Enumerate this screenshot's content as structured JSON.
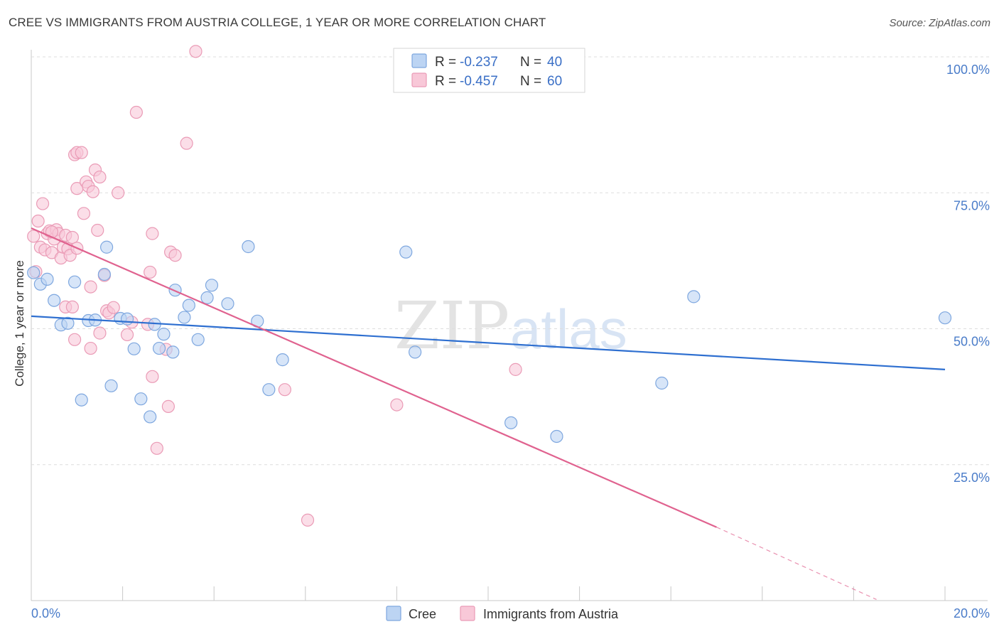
{
  "header": {
    "title": "CREE VS IMMIGRANTS FROM AUSTRIA COLLEGE, 1 YEAR OR MORE CORRELATION CHART",
    "source": "Source: ZipAtlas.com"
  },
  "watermark": {
    "zip": "ZIP",
    "atlas": "atlas"
  },
  "colors": {
    "cree_fill": "#bcd4f3",
    "cree_stroke": "#7ea7df",
    "cree_line": "#2e6fd0",
    "austria_fill": "#f8c8d8",
    "austria_stroke": "#ea9bb6",
    "austria_line": "#e0628f",
    "tick_text": "#4a7cc9",
    "grid": "#dedede"
  },
  "legend": {
    "rows": [
      {
        "r_label": "R = ",
        "r_value": "-0.237",
        "n_label": "N = ",
        "n_value": "40"
      },
      {
        "r_label": "R = ",
        "r_value": "-0.457",
        "n_label": "N = ",
        "n_value": "60"
      }
    ]
  },
  "chart_data": {
    "type": "scatter",
    "title": "CREE VS IMMIGRANTS FROM AUSTRIA COLLEGE, 1 YEAR OR MORE CORRELATION CHART",
    "xlabel": "",
    "ylabel": "College, 1 year or more",
    "xlim": [
      0,
      20
    ],
    "ylim": [
      0,
      100
    ],
    "x_tick_labels": [
      "0.0%",
      "20.0%"
    ],
    "y_ticks": [
      25,
      50,
      75,
      100
    ],
    "y_tick_labels": [
      "25.0%",
      "50.0%",
      "75.0%",
      "100.0%"
    ],
    "grid": true,
    "legend_position": "top-center",
    "series": [
      {
        "name": "Cree",
        "r": -0.237,
        "n": 40,
        "trend": {
          "x": [
            0,
            20
          ],
          "y": [
            52.3,
            42.5
          ]
        },
        "points": [
          [
            0.05,
            60.3
          ],
          [
            0.2,
            58.2
          ],
          [
            0.35,
            59.1
          ],
          [
            0.5,
            55.2
          ],
          [
            0.65,
            50.7
          ],
          [
            0.8,
            51.0
          ],
          [
            0.95,
            58.6
          ],
          [
            1.1,
            36.9
          ],
          [
            1.25,
            51.5
          ],
          [
            1.4,
            51.6
          ],
          [
            1.6,
            60.0
          ],
          [
            1.65,
            65.0
          ],
          [
            1.75,
            39.5
          ],
          [
            1.95,
            51.9
          ],
          [
            2.1,
            51.8
          ],
          [
            2.25,
            46.3
          ],
          [
            2.4,
            37.1
          ],
          [
            2.6,
            33.8
          ],
          [
            2.7,
            50.8
          ],
          [
            2.8,
            46.4
          ],
          [
            2.9,
            49.0
          ],
          [
            3.1,
            45.7
          ],
          [
            3.15,
            57.1
          ],
          [
            3.35,
            52.1
          ],
          [
            3.45,
            54.3
          ],
          [
            3.65,
            48.0
          ],
          [
            3.85,
            55.7
          ],
          [
            3.95,
            58.0
          ],
          [
            4.3,
            54.6
          ],
          [
            4.75,
            65.1
          ],
          [
            4.95,
            51.4
          ],
          [
            5.2,
            38.8
          ],
          [
            5.5,
            44.3
          ],
          [
            8.2,
            64.1
          ],
          [
            8.4,
            45.7
          ],
          [
            10.5,
            32.7
          ],
          [
            11.5,
            30.2
          ],
          [
            13.8,
            40.0
          ],
          [
            14.5,
            55.9
          ],
          [
            20.0,
            52.0
          ]
        ]
      },
      {
        "name": "Immigrants from Austria",
        "r": -0.457,
        "n": 60,
        "trend": {
          "x": [
            0,
            15
          ],
          "y": [
            68.5,
            13.5
          ]
        },
        "trend_dashed": {
          "x": [
            15,
            18.5
          ],
          "y": [
            13.5,
            0.2
          ]
        },
        "points": [
          [
            0.05,
            67.0
          ],
          [
            0.15,
            69.8
          ],
          [
            0.2,
            65.0
          ],
          [
            0.25,
            73.0
          ],
          [
            0.3,
            64.5
          ],
          [
            0.35,
            67.5
          ],
          [
            0.4,
            68.0
          ],
          [
            0.45,
            64.0
          ],
          [
            0.5,
            66.5
          ],
          [
            0.55,
            68.2
          ],
          [
            0.6,
            67.5
          ],
          [
            0.65,
            63.0
          ],
          [
            0.7,
            65.0
          ],
          [
            0.75,
            67.2
          ],
          [
            0.8,
            64.7
          ],
          [
            0.85,
            63.5
          ],
          [
            0.9,
            66.8
          ],
          [
            0.95,
            48.0
          ],
          [
            0.75,
            54.0
          ],
          [
            0.9,
            54.0
          ],
          [
            0.95,
            82.0
          ],
          [
            1.0,
            82.4
          ],
          [
            1.0,
            75.8
          ],
          [
            1.1,
            82.4
          ],
          [
            1.15,
            71.2
          ],
          [
            1.2,
            77.0
          ],
          [
            1.25,
            76.2
          ],
          [
            1.3,
            46.4
          ],
          [
            1.3,
            57.7
          ],
          [
            1.35,
            75.2
          ],
          [
            1.4,
            79.2
          ],
          [
            1.45,
            68.1
          ],
          [
            1.5,
            77.9
          ],
          [
            1.5,
            49.2
          ],
          [
            1.6,
            59.8
          ],
          [
            1.65,
            53.3
          ],
          [
            1.7,
            52.9
          ],
          [
            1.8,
            53.9
          ],
          [
            1.9,
            75.0
          ],
          [
            2.1,
            48.9
          ],
          [
            2.2,
            51.2
          ],
          [
            2.3,
            89.8
          ],
          [
            2.55,
            50.8
          ],
          [
            2.6,
            60.4
          ],
          [
            2.65,
            41.2
          ],
          [
            2.65,
            67.5
          ],
          [
            2.75,
            28.0
          ],
          [
            2.95,
            46.2
          ],
          [
            3.0,
            35.7
          ],
          [
            3.05,
            64.1
          ],
          [
            3.15,
            63.5
          ],
          [
            3.4,
            84.1
          ],
          [
            3.6,
            101.0
          ],
          [
            5.55,
            38.8
          ],
          [
            6.05,
            14.8
          ],
          [
            8.0,
            36.0
          ],
          [
            10.6,
            42.5
          ],
          [
            0.1,
            60.5
          ],
          [
            0.45,
            67.8
          ],
          [
            1.0,
            64.8
          ]
        ]
      }
    ]
  },
  "bottom_legend": {
    "items": [
      "Cree",
      "Immigrants from Austria"
    ]
  }
}
